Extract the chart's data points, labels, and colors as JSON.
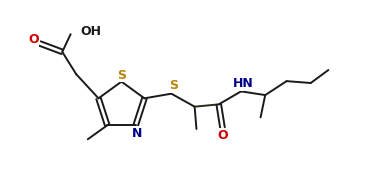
{
  "bg_color": "#ffffff",
  "line_color": "#1a1a1a",
  "S_color": "#b8860b",
  "N_color": "#00008b",
  "O_color": "#cc0000",
  "bond_color": "#2a2a1a",
  "line_width": 1.4,
  "font_size": 9,
  "xlim": [
    -0.5,
    7.5
  ],
  "ylim": [
    -1.5,
    2.5
  ]
}
